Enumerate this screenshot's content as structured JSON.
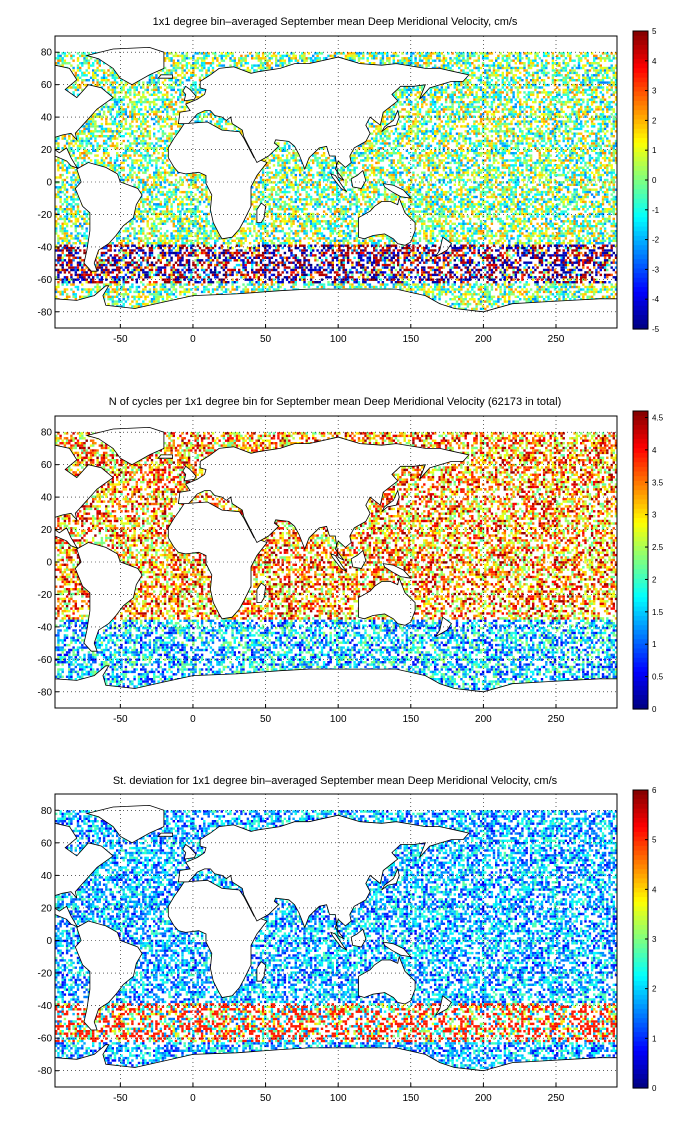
{
  "chart_data": [
    {
      "type": "heatmap",
      "title": "1x1 degree bin–averaged September mean Deep Meridional Velocity, cm/s",
      "xlabel": "",
      "ylabel": "",
      "xlim": [
        -95,
        292
      ],
      "ylim": [
        -90,
        90
      ],
      "xticks": [
        -50,
        0,
        50,
        100,
        150,
        200,
        250
      ],
      "yticks": [
        80,
        60,
        40,
        20,
        0,
        -20,
        -40,
        -60,
        -80
      ],
      "grid": true,
      "grid_style": "dotted",
      "colorbar": {
        "min": -5,
        "max": 5,
        "ticks": [
          5,
          4,
          3,
          2,
          1,
          0,
          -1,
          -2,
          -3,
          -4,
          -5
        ],
        "colormap": "jet"
      },
      "field_summary": {
        "typical_range": [
          -5,
          5
        ],
        "notes": "Mixed positive and negative values near zero in the Pacific and Atlantic; strong +/- extremes along the Southern Ocean band near 45-55S."
      }
    },
    {
      "type": "heatmap",
      "title": "N of cycles per 1x1 degree bin for September mean Deep Meridional Velocity (62173 in total)",
      "xlabel": "",
      "ylabel": "",
      "xlim": [
        -95,
        292
      ],
      "ylim": [
        -90,
        90
      ],
      "xticks": [
        -50,
        0,
        50,
        100,
        150,
        200,
        250
      ],
      "yticks": [
        80,
        60,
        40,
        20,
        0,
        -20,
        -40,
        -60,
        -80
      ],
      "grid": true,
      "grid_style": "dotted",
      "colorbar": {
        "min": 0,
        "max": 4.6,
        "ticks": [
          4.5,
          4,
          3.5,
          3,
          2.5,
          2,
          1.5,
          1,
          0.5,
          0
        ],
        "colormap": "jet"
      },
      "field_summary": {
        "typical_range": [
          0,
          4.6
        ],
        "notes": "High counts in the North Atlantic, tropical Pacific and Indian Ocean; low counts in the Southern Ocean."
      }
    },
    {
      "type": "heatmap",
      "title": "St. deviation for 1x1 degree bin–averaged September mean Deep Meridional Velocity, cm/s",
      "xlabel": "",
      "ylabel": "",
      "xlim": [
        -95,
        292
      ],
      "ylim": [
        -90,
        90
      ],
      "xticks": [
        -50,
        0,
        50,
        100,
        150,
        200,
        250
      ],
      "yticks": [
        80,
        60,
        40,
        20,
        0,
        -20,
        -40,
        -60,
        -80
      ],
      "grid": true,
      "grid_style": "dotted",
      "colorbar": {
        "min": 0,
        "max": 6,
        "ticks": [
          6,
          5,
          4,
          3,
          2,
          1,
          0
        ],
        "colormap": "jet"
      },
      "field_summary": {
        "typical_range": [
          0,
          6
        ],
        "notes": "Mostly low values (blue) in the Pacific interior; high values along the Southern Ocean band near 45-55S and in the western North Atlantic."
      }
    }
  ]
}
